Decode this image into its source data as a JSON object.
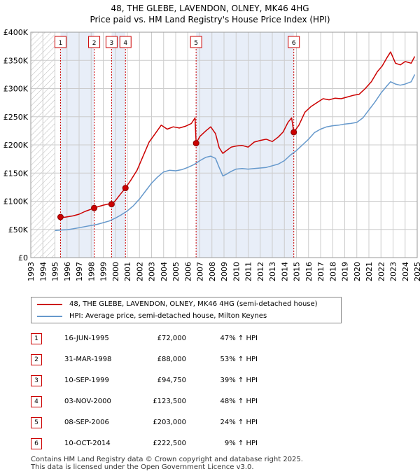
{
  "title_line1": "48, THE GLEBE, LAVENDON, OLNEY, MK46 4HG",
  "title_line2": "Price paid vs. HM Land Registry's House Price Index (HPI)",
  "colors": {
    "property": "#cc0000",
    "hpi": "#6699cc",
    "highlight": "#e8eef8",
    "grid": "#cccccc"
  },
  "legend": {
    "property": "48, THE GLEBE, LAVENDON, OLNEY, MK46 4HG (semi-detached house)",
    "hpi": "HPI: Average price, semi-detached house, Milton Keynes"
  },
  "sales": [
    {
      "num": "1",
      "date": "16-JUN-1995",
      "price": "£72,000",
      "hpi": "47% ↑ HPI"
    },
    {
      "num": "2",
      "date": "31-MAR-1998",
      "price": "£88,000",
      "hpi": "53% ↑ HPI"
    },
    {
      "num": "3",
      "date": "10-SEP-1999",
      "price": "£94,750",
      "hpi": "39% ↑ HPI"
    },
    {
      "num": "4",
      "date": "03-NOV-2000",
      "price": "£123,500",
      "hpi": "48% ↑ HPI"
    },
    {
      "num": "5",
      "date": "08-SEP-2006",
      "price": "£203,000",
      "hpi": "24% ↑ HPI"
    },
    {
      "num": "6",
      "date": "10-OCT-2014",
      "price": "£222,500",
      "hpi": "9% ↑ HPI"
    }
  ],
  "footer_line1": "Contains HM Land Registry data © Crown copyright and database right 2025.",
  "footer_line2": "This data is licensed under the Open Government Licence v3.0.",
  "chart_data": {
    "type": "line",
    "title": "48, THE GLEBE, LAVENDON, OLNEY, MK46 4HG",
    "subtitle": "Price paid vs. HM Land Registry's House Price Index (HPI)",
    "xlim": [
      1993,
      2025
    ],
    "ylim": [
      0,
      400000
    ],
    "y_ticks": [
      {
        "value": 0,
        "label": "£0"
      },
      {
        "value": 50000,
        "label": "£50K"
      },
      {
        "value": 100000,
        "label": "£100K"
      },
      {
        "value": 150000,
        "label": "£150K"
      },
      {
        "value": 200000,
        "label": "£200K"
      },
      {
        "value": 250000,
        "label": "£250K"
      },
      {
        "value": 300000,
        "label": "£300K"
      },
      {
        "value": 350000,
        "label": "£350K"
      },
      {
        "value": 400000,
        "label": "£400K"
      }
    ],
    "x_ticks": [
      1993,
      1994,
      1995,
      1996,
      1997,
      1998,
      1999,
      2000,
      2001,
      2002,
      2003,
      2004,
      2005,
      2006,
      2007,
      2008,
      2009,
      2010,
      2011,
      2012,
      2013,
      2014,
      2015,
      2016,
      2017,
      2018,
      2019,
      2020,
      2021,
      2022,
      2023,
      2024,
      2025
    ],
    "hatched_until": 1995,
    "grid": true,
    "legend_position": "below",
    "series": [
      {
        "name": "48, THE GLEBE, LAVENDON, OLNEY, MK46 4HG (semi-detached house)",
        "x": [
          1995.46,
          1995.8,
          1996.5,
          1997.0,
          1997.5,
          1998.0,
          1998.25,
          1998.5,
          1999.0,
          1999.4,
          1999.7,
          2000.0,
          2000.4,
          2000.84,
          2001.3,
          2001.8,
          2002.3,
          2002.8,
          2003.3,
          2003.8,
          2004.3,
          2004.8,
          2005.3,
          2005.8,
          2006.3,
          2006.6,
          2006.69,
          2007.0,
          2007.5,
          2007.9,
          2008.3,
          2008.6,
          2008.9,
          2009.2,
          2009.6,
          2010.0,
          2010.5,
          2011.0,
          2011.5,
          2012.0,
          2012.5,
          2013.0,
          2013.5,
          2013.9,
          2014.3,
          2014.6,
          2014.78,
          2015.2,
          2015.7,
          2016.2,
          2016.7,
          2017.2,
          2017.7,
          2018.2,
          2018.7,
          2019.2,
          2019.7,
          2020.2,
          2020.7,
          2021.2,
          2021.7,
          2022.1,
          2022.5,
          2022.8,
          2023.2,
          2023.6,
          2024.0,
          2024.5,
          2024.8
        ],
        "y": [
          72000,
          71500,
          74000,
          77000,
          82000,
          86000,
          88000,
          90000,
          93000,
          95000,
          94750,
          101000,
          112000,
          123500,
          138000,
          155000,
          180000,
          205000,
          220000,
          235000,
          228000,
          232000,
          230000,
          233000,
          238000,
          248000,
          203000,
          215000,
          225000,
          232000,
          220000,
          195000,
          185000,
          190000,
          196000,
          198000,
          199000,
          196000,
          205000,
          208000,
          210000,
          206000,
          214000,
          223000,
          240000,
          248000,
          222500,
          235000,
          258000,
          268000,
          275000,
          282000,
          280000,
          283000,
          282000,
          285000,
          288000,
          290000,
          300000,
          312000,
          330000,
          340000,
          355000,
          365000,
          345000,
          342000,
          348000,
          345000,
          357000
        ]
      },
      {
        "name": "HPI: Average price, semi-detached house, Milton Keynes",
        "x": [
          1995.0,
          1995.5,
          1996.0,
          1996.5,
          1997.0,
          1997.5,
          1998.0,
          1998.5,
          1999.0,
          1999.5,
          2000.0,
          2000.5,
          2001.0,
          2001.5,
          2002.0,
          2002.5,
          2003.0,
          2003.5,
          2004.0,
          2004.5,
          2005.0,
          2005.5,
          2006.0,
          2006.5,
          2007.0,
          2007.5,
          2007.9,
          2008.3,
          2008.6,
          2008.9,
          2009.2,
          2009.6,
          2010.0,
          2010.5,
          2011.0,
          2011.5,
          2012.0,
          2012.5,
          2013.0,
          2013.5,
          2014.0,
          2014.5,
          2015.0,
          2015.5,
          2016.0,
          2016.5,
          2017.0,
          2017.5,
          2018.0,
          2018.5,
          2019.0,
          2019.5,
          2020.0,
          2020.5,
          2021.0,
          2021.5,
          2022.0,
          2022.5,
          2022.8,
          2023.2,
          2023.6,
          2024.0,
          2024.5,
          2024.8
        ],
        "y": [
          48000,
          49000,
          49500,
          51000,
          53000,
          55000,
          57000,
          59000,
          62000,
          65000,
          70000,
          76000,
          83000,
          92000,
          104000,
          118000,
          132000,
          143000,
          152000,
          155000,
          154000,
          156000,
          160000,
          165000,
          172000,
          178000,
          180000,
          176000,
          160000,
          145000,
          148000,
          153000,
          157000,
          158000,
          157000,
          158000,
          159000,
          160000,
          163000,
          166000,
          172000,
          182000,
          190000,
          200000,
          210000,
          222000,
          228000,
          232000,
          234000,
          235000,
          237000,
          238000,
          240000,
          248000,
          262000,
          276000,
          292000,
          305000,
          312000,
          308000,
          306000,
          308000,
          312000,
          325000
        ]
      }
    ],
    "sale_markers": [
      {
        "label": "1",
        "x": 1995.46,
        "y": 72000
      },
      {
        "label": "2",
        "x": 1998.25,
        "y": 88000
      },
      {
        "label": "3",
        "x": 1999.69,
        "y": 94750
      },
      {
        "label": "4",
        "x": 2000.84,
        "y": 123500
      },
      {
        "label": "5",
        "x": 2006.69,
        "y": 203000
      },
      {
        "label": "6",
        "x": 2014.78,
        "y": 222500
      }
    ]
  }
}
